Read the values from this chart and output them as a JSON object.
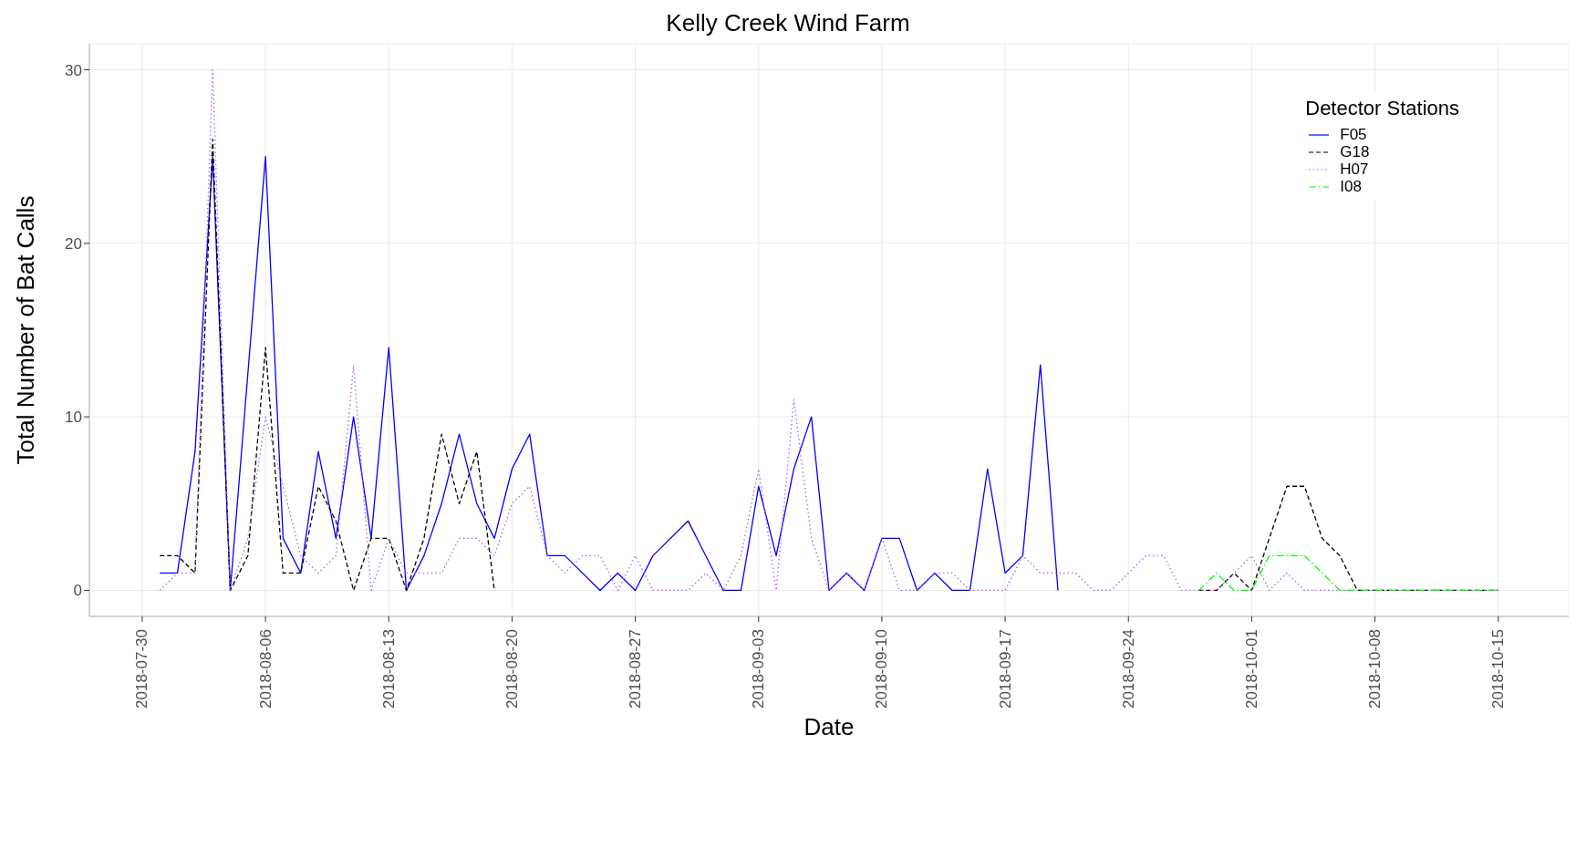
{
  "chart_data": {
    "type": "line",
    "title": "Kelly Creek Wind Farm",
    "xlabel": "Date",
    "ylabel": "Total Number of Bat Calls",
    "legend_title": "Detector Stations",
    "legend": "top right",
    "grid": true,
    "xlim": [
      "2018-07-27",
      "2018-10-19"
    ],
    "xticks": [
      "2018-07-30",
      "2018-08-06",
      "2018-08-13",
      "2018-08-20",
      "2018-08-27",
      "2018-09-03",
      "2018-09-10",
      "2018-09-17",
      "2018-09-24",
      "2018-10-01",
      "2018-10-08",
      "2018-10-15"
    ],
    "ylim": [
      -1.5,
      31.5
    ],
    "yticks": [
      0,
      10,
      20,
      30
    ],
    "series": [
      {
        "name": "F05",
        "color": "#0000ff",
        "line_style": "solid",
        "x": [
          "2018-07-31",
          "2018-08-01",
          "2018-08-02",
          "2018-08-03",
          "2018-08-04",
          "2018-08-06",
          "2018-08-07",
          "2018-08-08",
          "2018-08-09",
          "2018-08-10",
          "2018-08-11",
          "2018-08-12",
          "2018-08-13",
          "2018-08-14",
          "2018-08-15",
          "2018-08-16",
          "2018-08-17",
          "2018-08-18",
          "2018-08-19",
          "2018-08-20",
          "2018-08-21",
          "2018-08-22",
          "2018-08-23",
          "2018-08-25",
          "2018-08-26",
          "2018-08-27",
          "2018-08-28",
          "2018-08-30",
          "2018-09-01",
          "2018-09-02",
          "2018-09-03",
          "2018-09-04",
          "2018-09-05",
          "2018-09-06",
          "2018-09-07",
          "2018-09-08",
          "2018-09-09",
          "2018-09-10",
          "2018-09-11",
          "2018-09-12",
          "2018-09-13",
          "2018-09-14",
          "2018-09-15",
          "2018-09-16",
          "2018-09-17",
          "2018-09-18",
          "2018-09-19",
          "2018-09-20"
        ],
        "values": [
          1,
          1,
          8,
          25,
          0,
          25,
          3,
          1,
          8,
          3,
          10,
          3,
          14,
          0,
          2,
          5,
          9,
          5,
          3,
          7,
          9,
          2,
          2,
          0,
          1,
          0,
          2,
          4,
          0,
          0,
          6,
          2,
          7,
          10,
          0,
          1,
          0,
          3,
          3,
          0,
          1,
          0,
          0,
          7,
          1,
          2,
          13,
          0
        ]
      },
      {
        "name": "G18",
        "color": "#000000",
        "line_style": "dashed",
        "x": [
          "2018-07-31",
          "2018-08-01",
          "2018-08-02",
          "2018-08-03",
          "2018-08-04",
          "2018-08-05",
          "2018-08-06",
          "2018-08-07",
          "2018-08-08",
          "2018-08-09",
          "2018-08-10",
          "2018-08-11",
          "2018-08-12",
          "2018-08-13",
          "2018-08-14",
          "2018-08-15",
          "2018-08-16",
          "2018-08-17",
          "2018-08-18",
          "2018-08-19",
          "2018-08-20",
          "2018-09-28",
          "2018-09-29",
          "2018-09-30",
          "2018-10-01",
          "2018-10-02",
          "2018-10-03",
          "2018-10-04",
          "2018-10-05",
          "2018-10-06",
          "2018-10-07",
          "2018-10-08",
          "2018-10-09",
          "2018-10-10",
          "2018-10-11",
          "2018-10-12",
          "2018-10-13",
          "2018-10-14",
          "2018-10-15"
        ],
        "values": [
          2,
          2,
          1,
          26,
          0,
          2,
          14,
          1,
          1,
          6,
          4,
          0,
          3,
          3,
          0,
          3,
          9,
          5,
          8,
          0,
          null,
          0,
          0,
          1,
          0,
          3,
          6,
          6,
          3,
          2,
          0,
          0,
          0,
          0,
          0,
          0,
          0,
          0,
          0
        ]
      },
      {
        "name": "H07",
        "color": "#b45cff",
        "line_style": "dotted",
        "x": [
          "2018-07-31",
          "2018-08-01",
          "2018-08-02",
          "2018-08-03",
          "2018-08-04",
          "2018-08-05",
          "2018-08-06",
          "2018-08-07",
          "2018-08-08",
          "2018-08-09",
          "2018-08-10",
          "2018-08-11",
          "2018-08-12",
          "2018-08-13",
          "2018-08-14",
          "2018-08-15",
          "2018-08-16",
          "2018-08-17",
          "2018-08-18",
          "2018-08-19",
          "2018-08-20",
          "2018-08-21",
          "2018-08-22",
          "2018-08-23",
          "2018-08-24",
          "2018-08-25",
          "2018-08-26",
          "2018-08-27",
          "2018-08-28",
          "2018-08-29",
          "2018-08-30",
          "2018-08-31",
          "2018-09-01",
          "2018-09-02",
          "2018-09-03",
          "2018-09-04",
          "2018-09-05",
          "2018-09-06",
          "2018-09-07",
          "2018-09-08",
          "2018-09-09",
          "2018-09-10",
          "2018-09-11",
          "2018-09-12",
          "2018-09-13",
          "2018-09-14",
          "2018-09-15",
          "2018-09-16",
          "2018-09-17",
          "2018-09-18",
          "2018-09-19",
          "2018-09-20",
          "2018-09-21",
          "2018-09-22",
          "2018-09-23",
          "2018-09-24",
          "2018-09-25",
          "2018-09-26",
          "2018-09-27",
          "2018-09-28",
          "2018-09-29",
          "2018-09-30",
          "2018-10-01",
          "2018-10-02",
          "2018-10-03",
          "2018-10-04",
          "2018-10-05",
          "2018-10-06",
          "2018-10-07",
          "2018-10-08",
          "2018-10-09",
          "2018-10-10",
          "2018-10-11",
          "2018-10-12",
          "2018-10-13",
          "2018-10-14",
          "2018-10-15"
        ],
        "values": [
          0,
          1,
          1,
          30,
          0,
          3,
          10,
          6,
          2,
          1,
          2,
          13,
          0,
          3,
          1,
          1,
          1,
          3,
          3,
          2,
          5,
          6,
          2,
          1,
          2,
          2,
          0,
          2,
          0,
          0,
          0,
          1,
          0,
          2,
          7,
          0,
          11,
          3,
          0,
          1,
          0,
          3,
          0,
          0,
          1,
          1,
          0,
          0,
          0,
          2,
          1,
          1,
          1,
          0,
          0,
          1,
          2,
          2,
          0,
          0,
          0,
          1,
          2,
          0,
          1,
          0,
          0,
          0,
          0,
          0,
          0,
          0,
          0,
          0,
          0,
          0,
          0
        ]
      },
      {
        "name": "I08",
        "color": "#00ff00",
        "line_style": "dashdot",
        "x": [
          "2018-09-28",
          "2018-09-29",
          "2018-09-30",
          "2018-10-01",
          "2018-10-02",
          "2018-10-03",
          "2018-10-04",
          "2018-10-05",
          "2018-10-06",
          "2018-10-07",
          "2018-10-08",
          "2018-10-09",
          "2018-10-10",
          "2018-10-11",
          "2018-10-12",
          "2018-10-13",
          "2018-10-14",
          "2018-10-15"
        ],
        "values": [
          0,
          1,
          0,
          0,
          2,
          2,
          2,
          1,
          0,
          0,
          0,
          0,
          0,
          0,
          0,
          0,
          0,
          0
        ]
      }
    ]
  }
}
